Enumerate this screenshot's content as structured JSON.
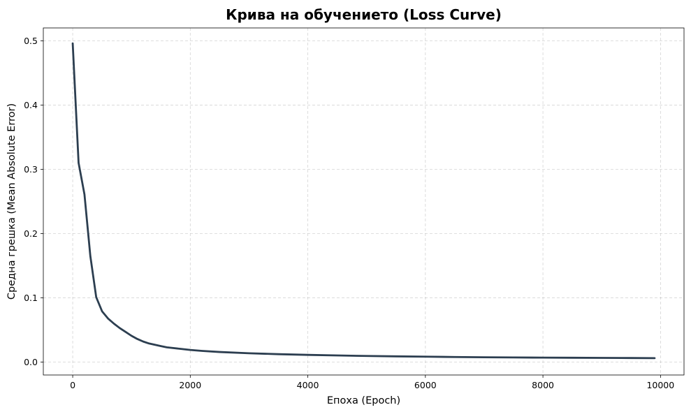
{
  "chart_data": {
    "type": "line",
    "title": "Крива на обучението (Loss Curve)",
    "xlabel": "Епоха (Epoch)",
    "ylabel": "Средна грешка (Mean Absolute Error)",
    "xlim": [
      -500,
      10400
    ],
    "ylim": [
      -0.02,
      0.52
    ],
    "xticks": [
      0,
      2000,
      4000,
      6000,
      8000,
      10000
    ],
    "xtick_labels": [
      "0",
      "2000",
      "4000",
      "6000",
      "8000",
      "10000"
    ],
    "yticks": [
      0.0,
      0.1,
      0.2,
      0.3,
      0.4,
      0.5
    ],
    "ytick_labels": [
      "0.0",
      "0.1",
      "0.2",
      "0.3",
      "0.4",
      "0.5"
    ],
    "grid": true,
    "line_color": "#2c3e50",
    "x": [
      0,
      100,
      200,
      300,
      400,
      500,
      600,
      700,
      800,
      900,
      1000,
      1100,
      1200,
      1300,
      1400,
      1500,
      1600,
      1800,
      2000,
      2200,
      2500,
      3000,
      3500,
      4000,
      4500,
      5000,
      5500,
      6000,
      6500,
      7000,
      7500,
      8000,
      8500,
      9000,
      9500,
      9900
    ],
    "y": [
      0.496,
      0.31,
      0.261,
      0.165,
      0.101,
      0.079,
      0.068,
      0.06,
      0.053,
      0.047,
      0.041,
      0.036,
      0.032,
      0.029,
      0.027,
      0.025,
      0.023,
      0.021,
      0.019,
      0.0175,
      0.0158,
      0.0138,
      0.0124,
      0.0113,
      0.0104,
      0.0096,
      0.009,
      0.0085,
      0.008,
      0.0076,
      0.0073,
      0.007,
      0.0068,
      0.0066,
      0.0064,
      0.0062
    ]
  }
}
